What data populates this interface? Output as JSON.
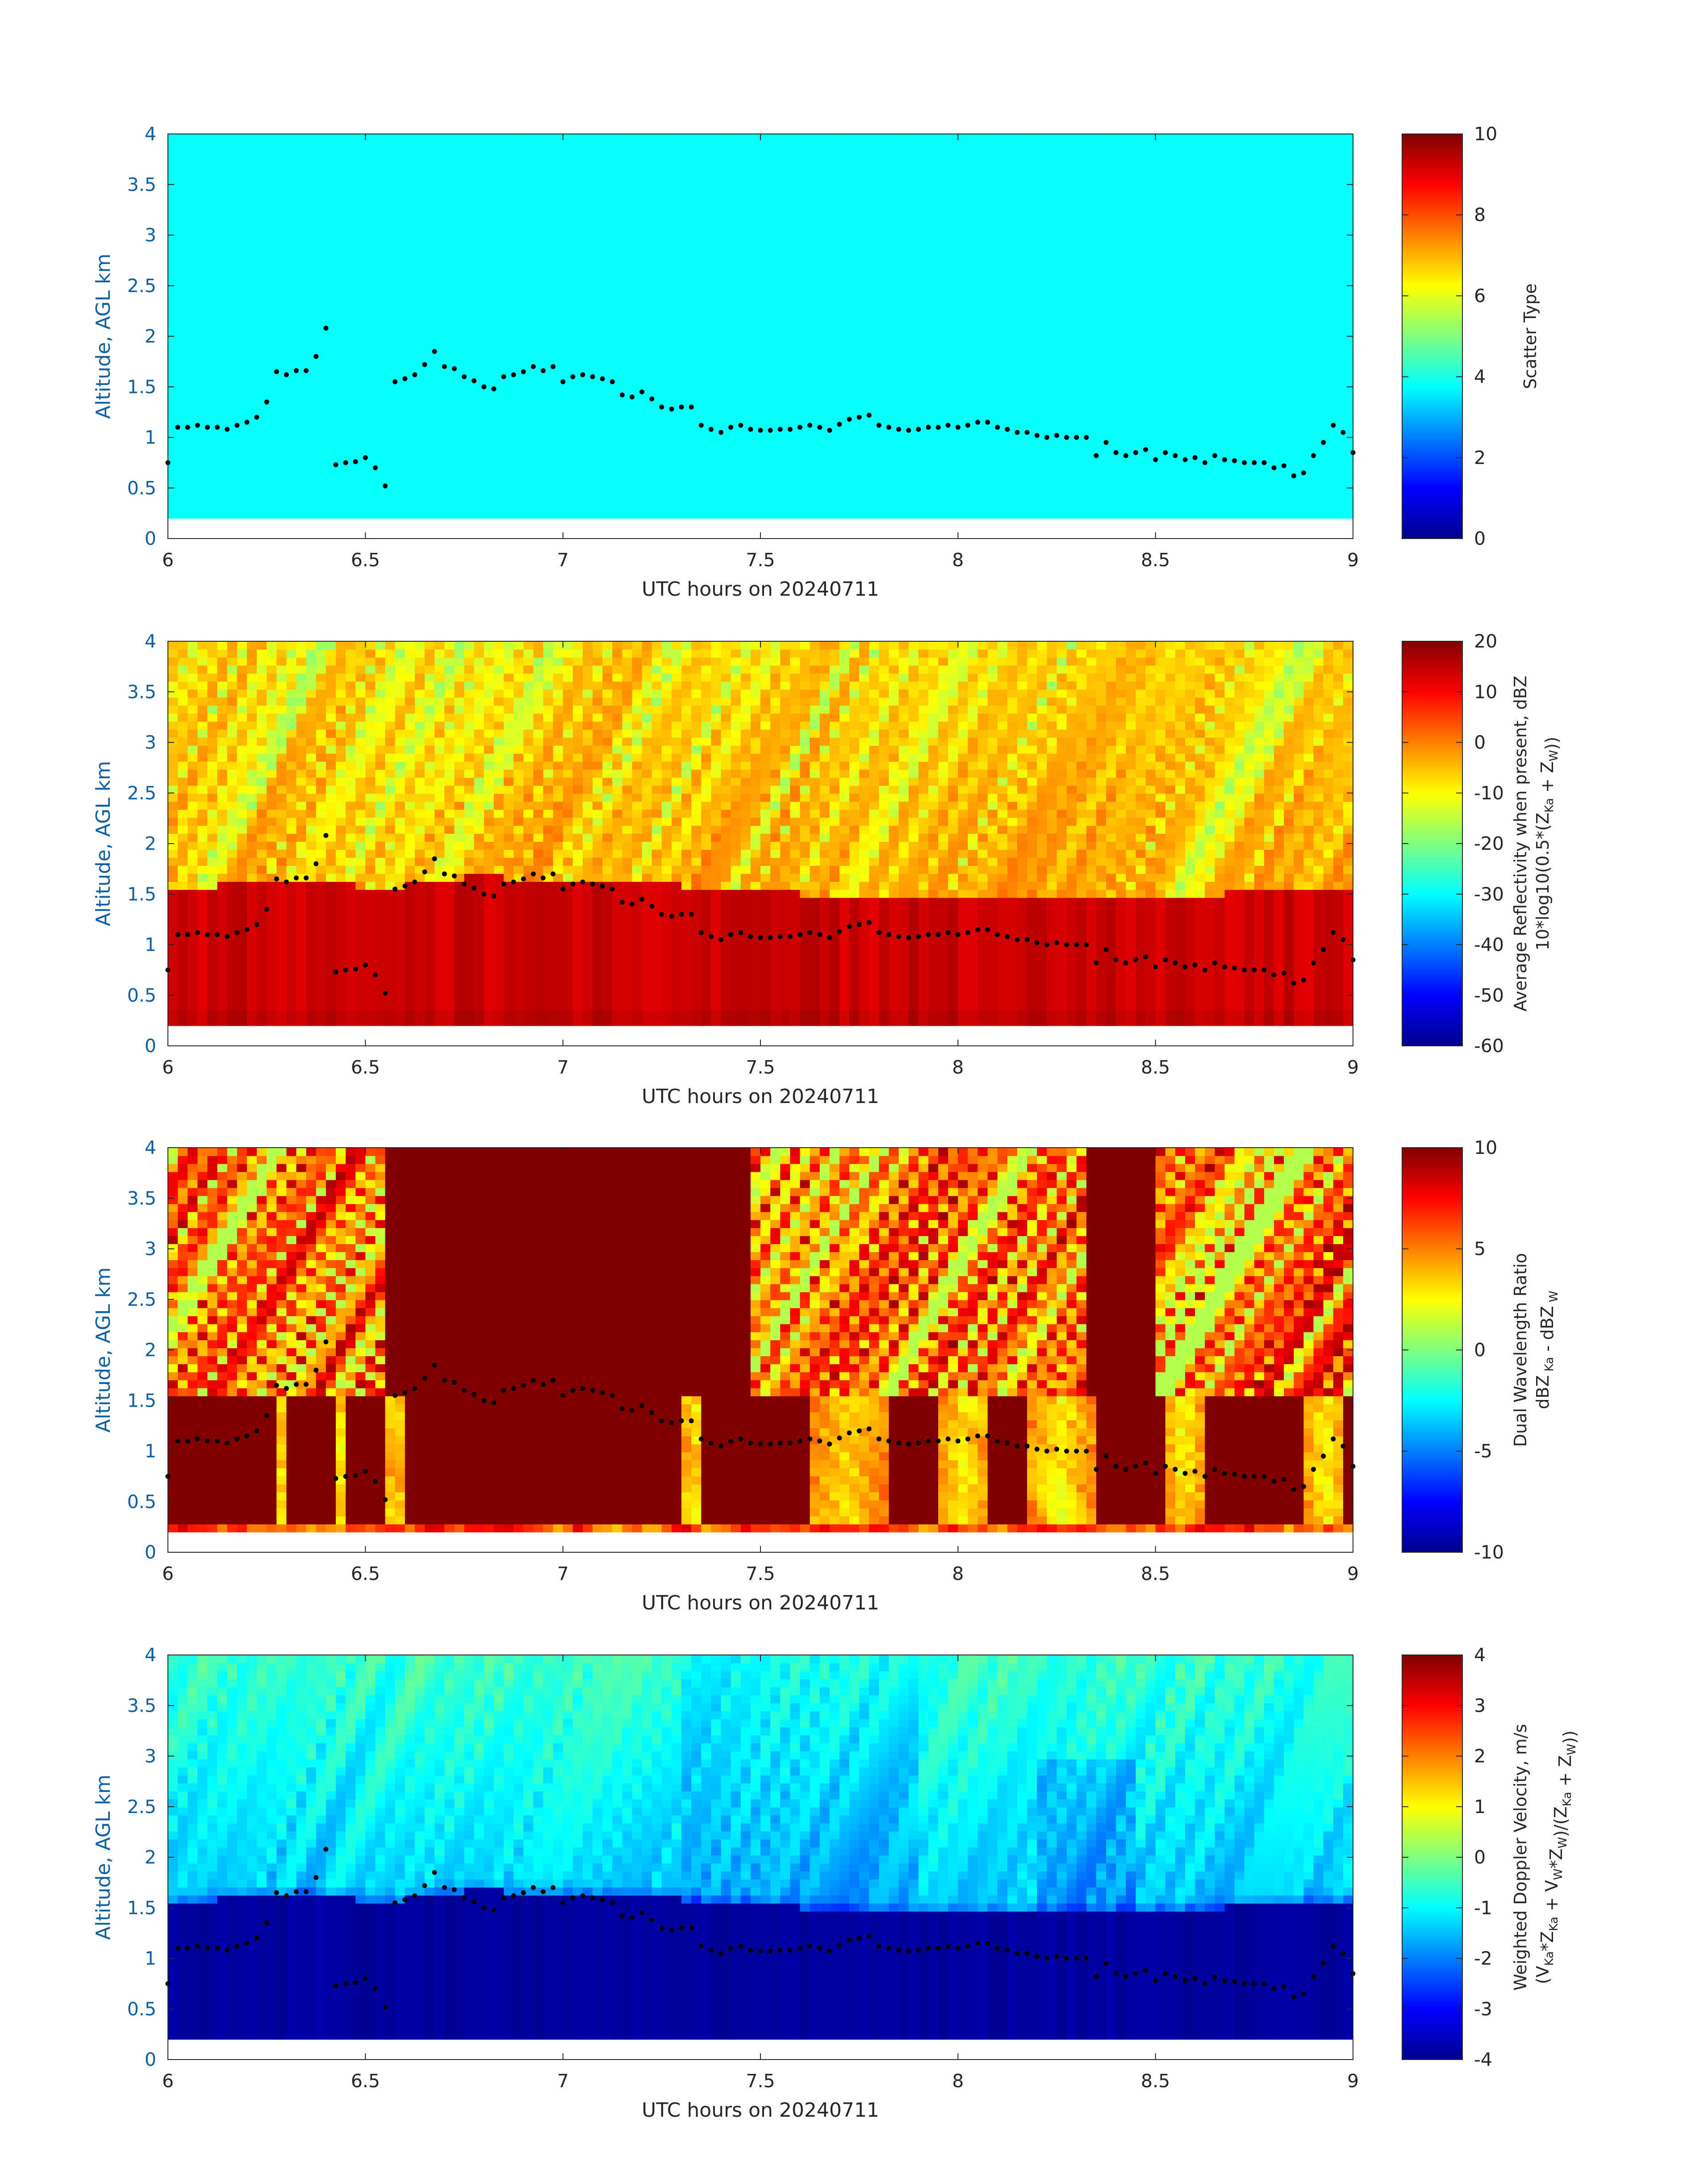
{
  "chart_data": [
    {
      "type": "heatmap",
      "xlabel": "UTC hours on 20240711",
      "ylabel": "Altitude, AGL km",
      "xlim": [
        6,
        9
      ],
      "ylim": [
        0,
        4
      ],
      "xticks": [
        "6",
        "6.5",
        "7",
        "7.5",
        "8",
        "8.5",
        "9"
      ],
      "yticks": [
        "0",
        "0.5",
        "1",
        "1.5",
        "2",
        "2.5",
        "3",
        "3.5",
        "4"
      ],
      "colorbar": {
        "label_lines": [
          {
            "parts": [
              {
                "t": "Scatter Type"
              }
            ]
          }
        ],
        "range": [
          0,
          10
        ],
        "ticks": [
          "0",
          "2",
          "4",
          "6",
          "8",
          "10"
        ]
      },
      "field": "scatter",
      "dominant_value": 3.8
    },
    {
      "type": "heatmap",
      "xlabel": "UTC hours on 20240711",
      "ylabel": "Altitude, AGL km",
      "xlim": [
        6,
        9
      ],
      "ylim": [
        0,
        4
      ],
      "xticks": [
        "6",
        "6.5",
        "7",
        "7.5",
        "8",
        "8.5",
        "9"
      ],
      "yticks": [
        "0",
        "0.5",
        "1",
        "1.5",
        "2",
        "2.5",
        "3",
        "3.5",
        "4"
      ],
      "colorbar": {
        "label_lines": [
          {
            "parts": [
              {
                "t": "Average Reflectivity when present, dBZ"
              }
            ]
          },
          {
            "parts": [
              {
                "t": "10*log10(0.5*(Z"
              },
              {
                "t": "Ka",
                "sub": true
              },
              {
                "t": " + Z"
              },
              {
                "t": "W",
                "sub": true
              },
              {
                "t": "))"
              }
            ]
          }
        ],
        "range": [
          -60,
          20
        ],
        "ticks": [
          "-60",
          "-50",
          "-40",
          "-30",
          "-20",
          "-10",
          "0",
          "10",
          "20"
        ]
      },
      "field": "reflectivity"
    },
    {
      "type": "heatmap",
      "xlabel": "UTC hours on 20240711",
      "ylabel": "Altitude, AGL km",
      "xlim": [
        6,
        9
      ],
      "ylim": [
        0,
        4
      ],
      "xticks": [
        "6",
        "6.5",
        "7",
        "7.5",
        "8",
        "8.5",
        "9"
      ],
      "yticks": [
        "0",
        "0.5",
        "1",
        "1.5",
        "2",
        "2.5",
        "3",
        "3.5",
        "4"
      ],
      "colorbar": {
        "label_lines": [
          {
            "parts": [
              {
                "t": "Dual Wavelength Ratio"
              }
            ]
          },
          {
            "parts": [
              {
                "t": "dBZ"
              },
              {
                "t": " Ka",
                "sub": true
              },
              {
                "t": " - dBZ"
              },
              {
                "t": " W",
                "sub": true
              }
            ]
          }
        ],
        "range": [
          -10,
          10
        ],
        "ticks": [
          "-10",
          "-5",
          "0",
          "5",
          "10"
        ]
      },
      "field": "dwr"
    },
    {
      "type": "heatmap",
      "xlabel": "UTC hours on 20240711",
      "ylabel": "Altitude, AGL km",
      "xlim": [
        6,
        9
      ],
      "ylim": [
        0,
        4
      ],
      "xticks": [
        "6",
        "6.5",
        "7",
        "7.5",
        "8",
        "8.5",
        "9"
      ],
      "yticks": [
        "0",
        "0.5",
        "1",
        "1.5",
        "2",
        "2.5",
        "3",
        "3.5",
        "4"
      ],
      "colorbar": {
        "label_lines": [
          {
            "parts": [
              {
                "t": "Weighted Doppler Velocity, m/s"
              }
            ]
          },
          {
            "parts": [
              {
                "t": "(V"
              },
              {
                "t": "Ka",
                "sub": true
              },
              {
                "t": "*Z"
              },
              {
                "t": "Ka",
                "sub": true
              },
              {
                "t": " + V"
              },
              {
                "t": "W",
                "sub": true
              },
              {
                "t": "*Z"
              },
              {
                "t": "W",
                "sub": true
              },
              {
                "t": ")/(Z"
              },
              {
                "t": "Ka",
                "sub": true
              },
              {
                "t": " + Z"
              },
              {
                "t": "W",
                "sub": true
              },
              {
                "t": "))"
              }
            ]
          }
        ],
        "range": [
          -4,
          4
        ],
        "ticks": [
          "-4",
          "-3",
          "-2",
          "-1",
          "0",
          "1",
          "2",
          "3",
          "4"
        ]
      },
      "field": "velocity"
    }
  ],
  "overlay_points": {
    "x": [
      6.0,
      6.025,
      6.05,
      6.075,
      6.1,
      6.125,
      6.15,
      6.175,
      6.2,
      6.225,
      6.25,
      6.275,
      6.3,
      6.325,
      6.35,
      6.375,
      6.4,
      6.425,
      6.45,
      6.475,
      6.5,
      6.525,
      6.55,
      6.575,
      6.6,
      6.625,
      6.65,
      6.675,
      6.7,
      6.725,
      6.75,
      6.775,
      6.8,
      6.825,
      6.85,
      6.875,
      6.9,
      6.925,
      6.95,
      6.975,
      7.0,
      7.025,
      7.05,
      7.075,
      7.1,
      7.125,
      7.15,
      7.175,
      7.2,
      7.225,
      7.25,
      7.275,
      7.3,
      7.325,
      7.35,
      7.375,
      7.4,
      7.425,
      7.45,
      7.475,
      7.5,
      7.525,
      7.55,
      7.575,
      7.6,
      7.625,
      7.65,
      7.675,
      7.7,
      7.725,
      7.75,
      7.775,
      7.8,
      7.825,
      7.85,
      7.875,
      7.9,
      7.925,
      7.95,
      7.975,
      8.0,
      8.025,
      8.05,
      8.075,
      8.1,
      8.125,
      8.15,
      8.175,
      8.2,
      8.225,
      8.25,
      8.275,
      8.3,
      8.325,
      8.35,
      8.375,
      8.4,
      8.425,
      8.45,
      8.475,
      8.5,
      8.525,
      8.55,
      8.575,
      8.6,
      8.625,
      8.65,
      8.675,
      8.7,
      8.725,
      8.75,
      8.775,
      8.8,
      8.825,
      8.85,
      8.875,
      8.9,
      8.925,
      8.95,
      8.975,
      9.0
    ],
    "y": [
      0.75,
      1.1,
      1.1,
      1.12,
      1.1,
      1.1,
      1.08,
      1.12,
      1.15,
      1.2,
      1.35,
      1.65,
      1.62,
      1.66,
      1.66,
      1.8,
      2.08,
      0.73,
      0.75,
      0.76,
      0.8,
      0.7,
      0.52,
      1.55,
      1.58,
      1.62,
      1.72,
      1.85,
      1.7,
      1.68,
      1.6,
      1.56,
      1.5,
      1.48,
      1.6,
      1.62,
      1.65,
      1.7,
      1.66,
      1.7,
      1.55,
      1.6,
      1.62,
      1.6,
      1.58,
      1.55,
      1.42,
      1.4,
      1.45,
      1.38,
      1.3,
      1.28,
      1.3,
      1.3,
      1.12,
      1.08,
      1.05,
      1.1,
      1.12,
      1.08,
      1.07,
      1.07,
      1.08,
      1.08,
      1.1,
      1.12,
      1.1,
      1.07,
      1.13,
      1.18,
      1.2,
      1.22,
      1.12,
      1.1,
      1.08,
      1.07,
      1.08,
      1.1,
      1.1,
      1.12,
      1.1,
      1.12,
      1.15,
      1.15,
      1.1,
      1.08,
      1.05,
      1.05,
      1.02,
      1.0,
      1.02,
      1.0,
      1.0,
      1.0,
      0.82,
      0.95,
      0.85,
      0.82,
      0.85,
      0.88,
      0.78,
      0.85,
      0.82,
      0.78,
      0.8,
      0.75,
      0.82,
      0.78,
      0.77,
      0.75,
      0.75,
      0.75,
      0.7,
      0.72,
      0.62,
      0.65,
      0.82,
      0.95,
      1.12,
      1.05,
      0.85
    ]
  }
}
